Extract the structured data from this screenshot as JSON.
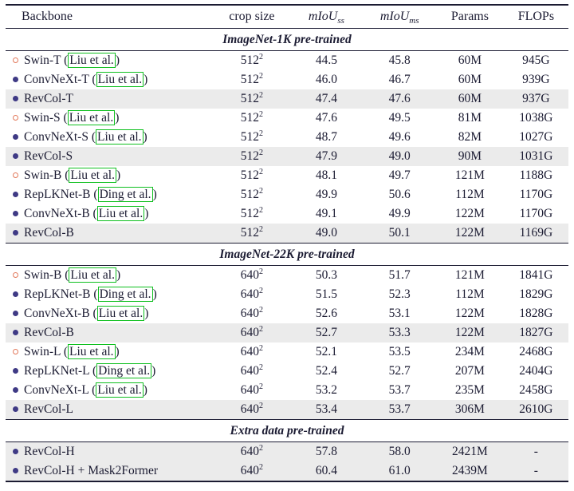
{
  "table": {
    "colors": {
      "text": "#1b1b32",
      "open_marker": "#e2795b",
      "filled_marker": "#3f3a85",
      "citation_box": "#10c020",
      "highlight_row": "#ebebeb"
    },
    "headers": [
      {
        "text": "Backbone"
      },
      {
        "text": "crop size"
      },
      {
        "math": "mIoU",
        "sub": "ss"
      },
      {
        "math": "mIoU",
        "sub": "ms"
      },
      {
        "text": "Params"
      },
      {
        "text": "FLOPs"
      }
    ],
    "sections": [
      {
        "title": "ImageNet-1K pre-trained",
        "rows": [
          {
            "marker": "open",
            "backbone": "Swin-T",
            "cite": "Liu et al.",
            "crop": "512",
            "crop_exp": "2",
            "miou_ss": "44.5",
            "miou_ms": "45.8",
            "params": "60M",
            "flops": "945G",
            "highlight": false
          },
          {
            "marker": "filled",
            "backbone": "ConvNeXt-T",
            "cite": "Liu et al.",
            "crop": "512",
            "crop_exp": "2",
            "miou_ss": "46.0",
            "miou_ms": "46.7",
            "params": "60M",
            "flops": "939G",
            "highlight": false
          },
          {
            "marker": "filled",
            "backbone": "RevCol-T",
            "cite": null,
            "crop": "512",
            "crop_exp": "2",
            "miou_ss": "47.4",
            "miou_ms": "47.6",
            "params": "60M",
            "flops": "937G",
            "highlight": true
          },
          {
            "marker": "open",
            "backbone": "Swin-S",
            "cite": "Liu et al.",
            "crop": "512",
            "crop_exp": "2",
            "miou_ss": "47.6",
            "miou_ms": "49.5",
            "params": "81M",
            "flops": "1038G",
            "highlight": false
          },
          {
            "marker": "filled",
            "backbone": "ConvNeXt-S",
            "cite": "Liu et al.",
            "crop": "512",
            "crop_exp": "2",
            "miou_ss": "48.7",
            "miou_ms": "49.6",
            "params": "82M",
            "flops": "1027G",
            "highlight": false
          },
          {
            "marker": "filled",
            "backbone": "RevCol-S",
            "cite": null,
            "crop": "512",
            "crop_exp": "2",
            "miou_ss": "47.9",
            "miou_ms": "49.0",
            "params": "90M",
            "flops": "1031G",
            "highlight": true
          },
          {
            "marker": "open",
            "backbone": "Swin-B",
            "cite": "Liu et al.",
            "crop": "512",
            "crop_exp": "2",
            "miou_ss": "48.1",
            "miou_ms": "49.7",
            "params": "121M",
            "flops": "1188G",
            "highlight": false
          },
          {
            "marker": "filled",
            "backbone": "RepLKNet-B",
            "cite": "Ding et al.",
            "crop": "512",
            "crop_exp": "2",
            "miou_ss": "49.9",
            "miou_ms": "50.6",
            "params": "112M",
            "flops": "1170G",
            "highlight": false
          },
          {
            "marker": "filled",
            "backbone": "ConvNeXt-B",
            "cite": "Liu et al.",
            "crop": "512",
            "crop_exp": "2",
            "miou_ss": "49.1",
            "miou_ms": "49.9",
            "params": "122M",
            "flops": "1170G",
            "highlight": false
          },
          {
            "marker": "filled",
            "backbone": "RevCol-B",
            "cite": null,
            "crop": "512",
            "crop_exp": "2",
            "miou_ss": "49.0",
            "miou_ms": "50.1",
            "params": "122M",
            "flops": "1169G",
            "highlight": true
          }
        ]
      },
      {
        "title": "ImageNet-22K pre-trained",
        "rows": [
          {
            "marker": "open",
            "backbone": "Swin-B",
            "cite": "Liu et al.",
            "crop": "640",
            "crop_exp": "2",
            "miou_ss": "50.3",
            "miou_ms": "51.7",
            "params": "121M",
            "flops": "1841G",
            "highlight": false
          },
          {
            "marker": "filled",
            "backbone": "RepLKNet-B",
            "cite": "Ding et al.",
            "crop": "640",
            "crop_exp": "2",
            "miou_ss": "51.5",
            "miou_ms": "52.3",
            "params": "112M",
            "flops": "1829G",
            "highlight": false
          },
          {
            "marker": "filled",
            "backbone": "ConvNeXt-B",
            "cite": "Liu et al.",
            "crop": "640",
            "crop_exp": "2",
            "miou_ss": "52.6",
            "miou_ms": "53.1",
            "params": "122M",
            "flops": "1828G",
            "highlight": false
          },
          {
            "marker": "filled",
            "backbone": "RevCol-B",
            "cite": null,
            "crop": "640",
            "crop_exp": "2",
            "miou_ss": "52.7",
            "miou_ms": "53.3",
            "params": "122M",
            "flops": "1827G",
            "highlight": true
          },
          {
            "marker": "open",
            "backbone": "Swin-L",
            "cite": "Liu et al.",
            "crop": "640",
            "crop_exp": "2",
            "miou_ss": "52.1",
            "miou_ms": "53.5",
            "params": "234M",
            "flops": "2468G",
            "highlight": false
          },
          {
            "marker": "filled",
            "backbone": "RepLKNet-L",
            "cite": "Ding et al.",
            "crop": "640",
            "crop_exp": "2",
            "miou_ss": "52.4",
            "miou_ms": "52.7",
            "params": "207M",
            "flops": "2404G",
            "highlight": false
          },
          {
            "marker": "filled",
            "backbone": "ConvNeXt-L",
            "cite": "Liu et al.",
            "crop": "640",
            "crop_exp": "2",
            "miou_ss": "53.2",
            "miou_ms": "53.7",
            "params": "235M",
            "flops": "2458G",
            "highlight": false
          },
          {
            "marker": "filled",
            "backbone": "RevCol-L",
            "cite": null,
            "crop": "640",
            "crop_exp": "2",
            "miou_ss": "53.4",
            "miou_ms": "53.7",
            "params": "306M",
            "flops": "2610G",
            "highlight": true
          }
        ]
      },
      {
        "title": "Extra data pre-trained",
        "rows": [
          {
            "marker": "filled",
            "backbone": "RevCol-H",
            "cite": null,
            "crop": "640",
            "crop_exp": "2",
            "miou_ss": "57.8",
            "miou_ms": "58.0",
            "params": "2421M",
            "flops": "-",
            "highlight": true
          },
          {
            "marker": "filled",
            "backbone": "RevCol-H + Mask2Former",
            "cite": null,
            "crop": "640",
            "crop_exp": "2",
            "miou_ss": "60.4",
            "miou_ms": "61.0",
            "params": "2439M",
            "flops": "-",
            "highlight": true
          }
        ]
      }
    ]
  }
}
